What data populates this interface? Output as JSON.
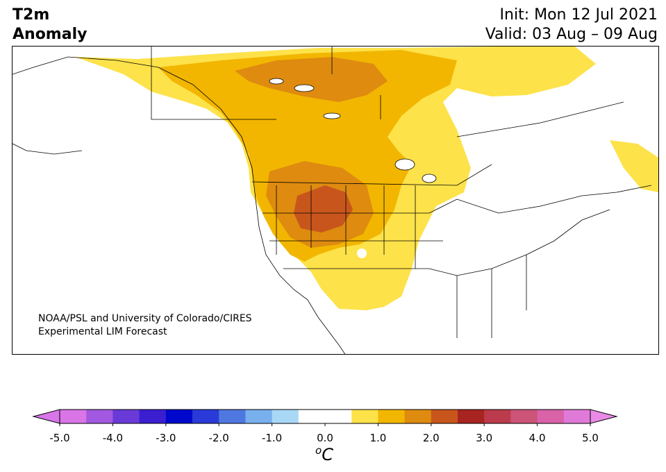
{
  "header": {
    "title_line1": "T2m",
    "title_line2": "Anomaly",
    "init_text": "Init: Mon 12 Jul 2021",
    "valid_text": "Valid: 03 Aug – 09 Aug"
  },
  "credit": {
    "line1": "NOAA/PSL and University of Colorado/CIRES",
    "line2": "Experimental LIM Forecast"
  },
  "colorbar": {
    "units_base": "C",
    "units_sup": "o",
    "min": -5.0,
    "max": 5.0,
    "ticks": [
      "-5.0",
      "-4.0",
      "-3.0",
      "-2.0",
      "-1.0",
      "0.0",
      "1.0",
      "2.0",
      "3.0",
      "4.0",
      "5.0"
    ],
    "colors": [
      "#d975e6",
      "#a258e0",
      "#6a3ad8",
      "#3a1ed0",
      "#0008cc",
      "#2a3ad8",
      "#4e78e0",
      "#78b0ee",
      "#a9d8f6",
      "#ffffff",
      "#ffffff",
      "#fde24a",
      "#f2b600",
      "#de8b10",
      "#c8561c",
      "#a82420",
      "#bb3b4c",
      "#cb5478",
      "#d962a8",
      "#e07ad8"
    ],
    "under_color": "#d875e8",
    "over_color": "#e98be6"
  }
}
